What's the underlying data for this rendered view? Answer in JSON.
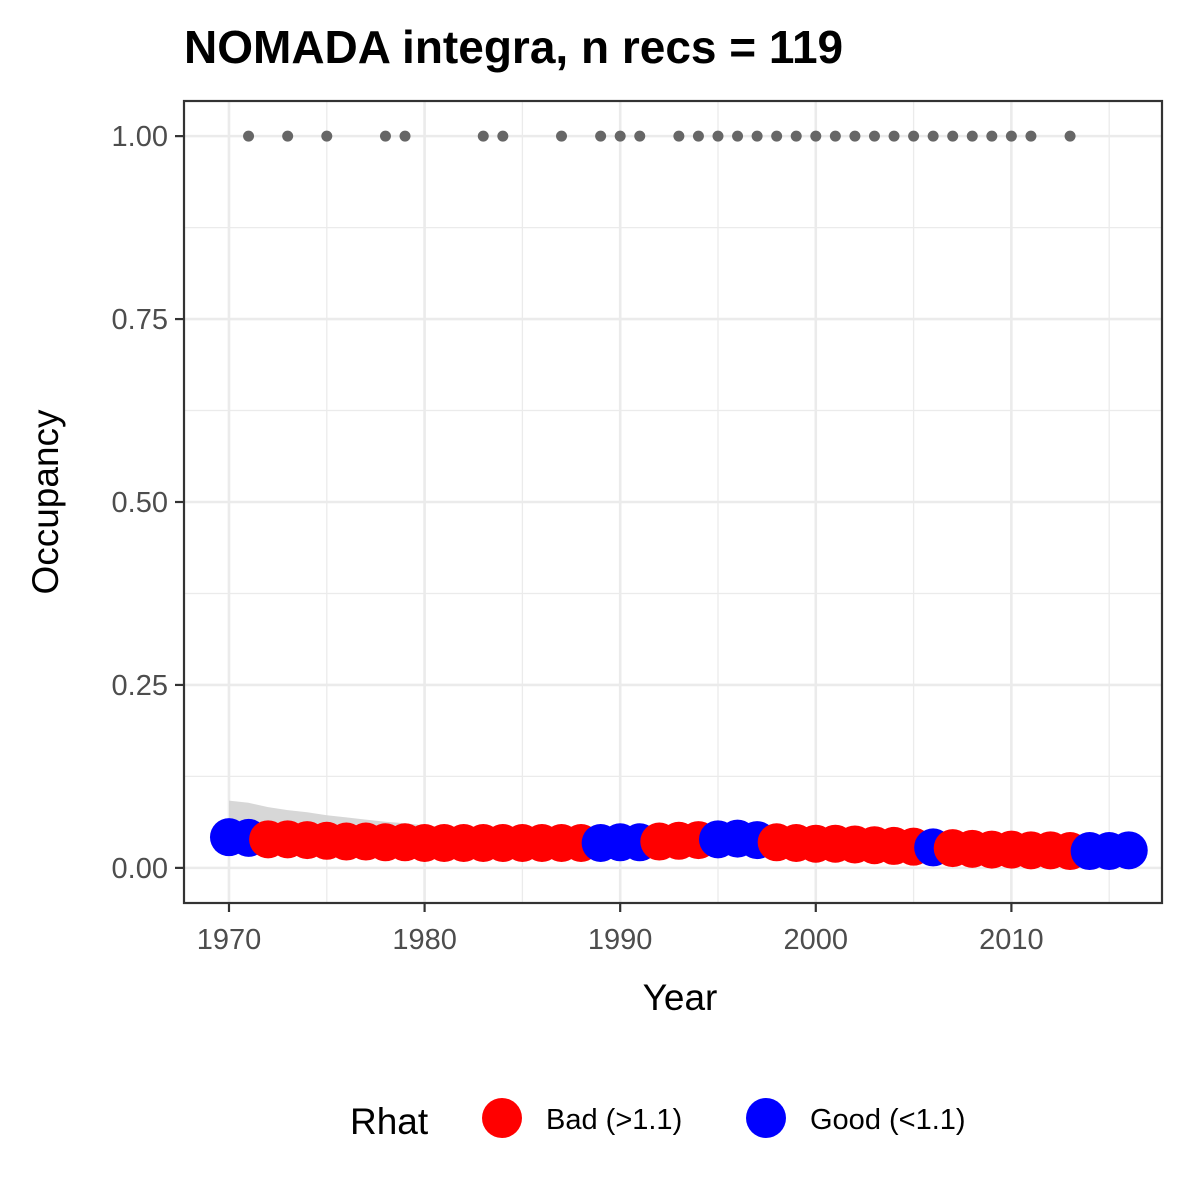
{
  "chart_data": {
    "type": "scatter",
    "title": "NOMADA integra, n recs = 119",
    "xlabel": "Year",
    "ylabel": "Occupancy",
    "xlim": [
      1967.7,
      2017.7
    ],
    "ylim": [
      -0.048,
      1.048
    ],
    "x_ticks": [
      1970,
      1980,
      1990,
      2000,
      2010
    ],
    "x_tick_labels": [
      "1970",
      "1980",
      "1990",
      "2000",
      "2010"
    ],
    "y_ticks": [
      0,
      0.25,
      0.5,
      0.75,
      1.0
    ],
    "y_tick_labels": [
      "0.00",
      "0.25",
      "0.50",
      "0.75",
      "1.00"
    ],
    "grid": true,
    "legend": {
      "title": "Rhat",
      "placement": "bottom",
      "entries": [
        {
          "label": "Bad (>1.1)",
          "color": "#ff0000"
        },
        {
          "label": "Good (<1.1)",
          "color": "#0000ff"
        }
      ]
    },
    "colors": {
      "bad": "#ff0000",
      "good": "#0000ff",
      "records": "#666666",
      "ribbon": "#d3d3d3"
    },
    "occupancy": {
      "years": [
        1970,
        1971,
        1972,
        1973,
        1974,
        1975,
        1976,
        1977,
        1978,
        1979,
        1980,
        1981,
        1982,
        1983,
        1984,
        1985,
        1986,
        1987,
        1988,
        1989,
        1990,
        1991,
        1992,
        1993,
        1994,
        1995,
        1996,
        1997,
        1998,
        1999,
        2000,
        2001,
        2002,
        2003,
        2004,
        2005,
        2006,
        2007,
        2008,
        2009,
        2010,
        2011,
        2012,
        2013,
        2014,
        2015,
        2016
      ],
      "values": [
        0.042,
        0.041,
        0.039,
        0.039,
        0.038,
        0.037,
        0.036,
        0.036,
        0.035,
        0.035,
        0.034,
        0.034,
        0.034,
        0.034,
        0.034,
        0.034,
        0.034,
        0.034,
        0.034,
        0.034,
        0.035,
        0.035,
        0.036,
        0.037,
        0.038,
        0.039,
        0.04,
        0.038,
        0.035,
        0.034,
        0.033,
        0.033,
        0.032,
        0.031,
        0.03,
        0.029,
        0.028,
        0.027,
        0.026,
        0.025,
        0.025,
        0.024,
        0.024,
        0.023,
        0.023,
        0.023,
        0.024
      ],
      "rhat": [
        "good",
        "good",
        "bad",
        "bad",
        "bad",
        "bad",
        "bad",
        "bad",
        "bad",
        "bad",
        "bad",
        "bad",
        "bad",
        "bad",
        "bad",
        "bad",
        "bad",
        "bad",
        "bad",
        "good",
        "good",
        "good",
        "bad",
        "bad",
        "bad",
        "good",
        "good",
        "good",
        "bad",
        "bad",
        "bad",
        "bad",
        "bad",
        "bad",
        "bad",
        "bad",
        "good",
        "bad",
        "bad",
        "bad",
        "bad",
        "bad",
        "bad",
        "bad",
        "good",
        "good",
        "good"
      ],
      "ribbon_upper": [
        0.092,
        0.089,
        0.083,
        0.079,
        0.076,
        0.072,
        0.069,
        0.066,
        0.063,
        0.061,
        0.058,
        0.056,
        0.054,
        0.052,
        0.05,
        0.049,
        0.048,
        0.047,
        0.046,
        0.045,
        0.045,
        0.045,
        0.045,
        0.046,
        0.047,
        0.048,
        0.049,
        0.047,
        0.045,
        0.043,
        0.042,
        0.041,
        0.04,
        0.039,
        0.038,
        0.037,
        0.036,
        0.035,
        0.034,
        0.033,
        0.033,
        0.032,
        0.032,
        0.031,
        0.031,
        0.031,
        0.032
      ],
      "ribbon_lower": [
        0.02,
        0.02,
        0.02,
        0.021,
        0.021,
        0.021,
        0.021,
        0.021,
        0.022,
        0.022,
        0.022,
        0.022,
        0.022,
        0.023,
        0.023,
        0.023,
        0.023,
        0.023,
        0.023,
        0.024,
        0.024,
        0.025,
        0.025,
        0.026,
        0.027,
        0.028,
        0.029,
        0.028,
        0.026,
        0.025,
        0.024,
        0.024,
        0.023,
        0.023,
        0.022,
        0.021,
        0.02,
        0.019,
        0.018,
        0.017,
        0.017,
        0.016,
        0.016,
        0.015,
        0.015,
        0.015,
        0.016
      ]
    },
    "records": {
      "years": [
        1971,
        1973,
        1975,
        1978,
        1979,
        1983,
        1984,
        1987,
        1989,
        1990,
        1991,
        1993,
        1994,
        1995,
        1996,
        1997,
        1998,
        1999,
        2000,
        2001,
        2002,
        2003,
        2004,
        2005,
        2006,
        2007,
        2008,
        2009,
        2010,
        2011,
        2013
      ],
      "value": 1.0
    }
  }
}
